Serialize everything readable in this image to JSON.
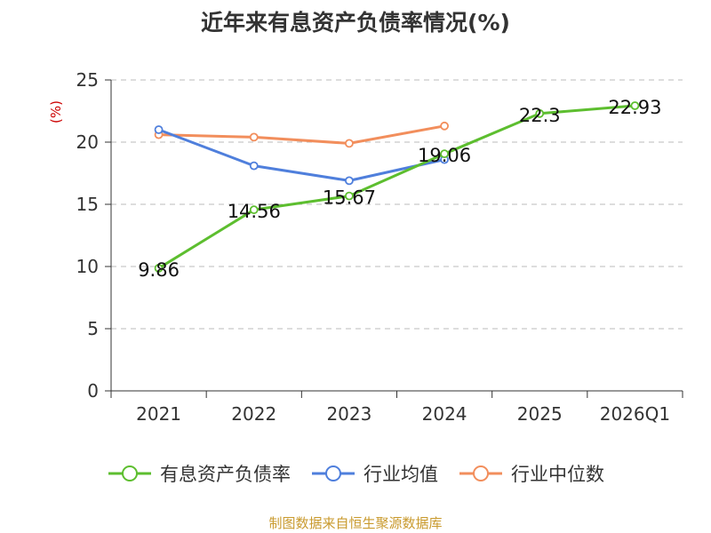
{
  "chart_data": {
    "type": "line",
    "title": "近年来有息资产负债率情况(%)",
    "ylabel": "(%)",
    "categories": [
      "2021",
      "2022",
      "2023",
      "2024",
      "2025",
      "2026Q1"
    ],
    "ylim": [
      0,
      25
    ],
    "yticks": [
      0,
      5,
      10,
      15,
      20,
      25
    ],
    "grid": true,
    "legend_position": "bottom",
    "series": [
      {
        "name": "有息资产负债率",
        "color": "#5DBE2F",
        "values": [
          9.86,
          14.56,
          15.67,
          19.06,
          22.3,
          22.93
        ],
        "labels": [
          "9.86",
          "14.56",
          "15.67",
          "19.06",
          "22.3",
          "22.93"
        ]
      },
      {
        "name": "行业均值",
        "color": "#4F7FDC",
        "values": [
          21.0,
          18.1,
          16.9,
          18.6,
          null,
          null
        ]
      },
      {
        "name": "行业中位数",
        "color": "#F28E5C",
        "values": [
          20.6,
          20.4,
          19.9,
          21.3,
          null,
          null
        ]
      }
    ]
  },
  "source_text": "制图数据来自恒生聚源数据库",
  "colors": {
    "ylabel": "#CC0000",
    "source": "#C99A2E",
    "axis": "#333333",
    "grid": "#BBBBBB"
  }
}
